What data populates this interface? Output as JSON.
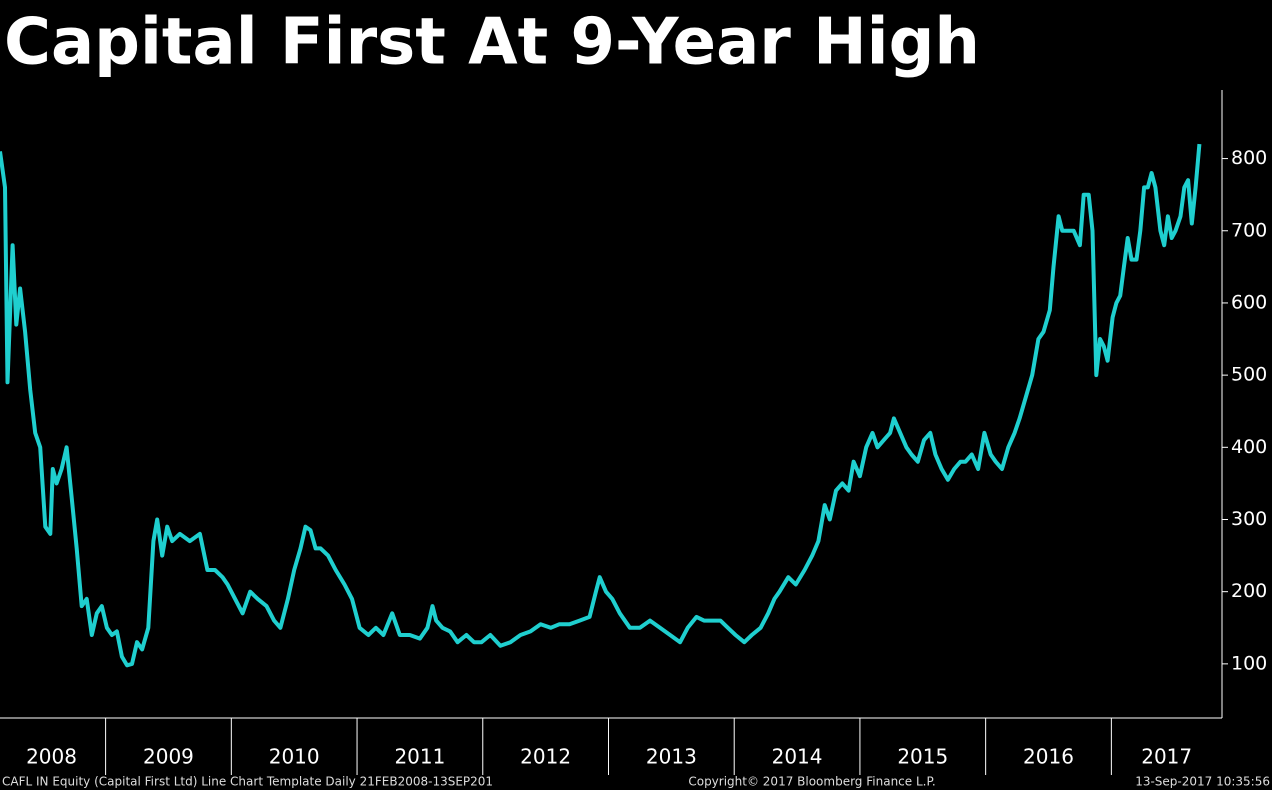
{
  "chart_data": {
    "type": "line",
    "title": "Capital First At 9-Year High",
    "footer_left": "CAFL IN Equity (Capital First Ltd) Line Chart Template  Daily 21FEB2008-13SEP201",
    "footer_center": "Copyright© 2017 Bloomberg Finance L.P.",
    "footer_right": "13-Sep-2017 10:35:56",
    "xlim": [
      2008.16,
      2017.88
    ],
    "ylim": [
      25,
      895
    ],
    "yticks": [
      100,
      200,
      300,
      400,
      500,
      600,
      700,
      800
    ],
    "xticks": [
      2009,
      2010,
      2011,
      2012,
      2013,
      2014,
      2015,
      2016,
      2017
    ],
    "x_labels": [
      {
        "value": 2008.57,
        "label": "2008"
      },
      {
        "value": 2009.5,
        "label": "2009"
      },
      {
        "value": 2010.5,
        "label": "2010"
      },
      {
        "value": 2011.5,
        "label": "2011"
      },
      {
        "value": 2012.5,
        "label": "2012"
      },
      {
        "value": 2013.5,
        "label": "2013"
      },
      {
        "value": 2014.5,
        "label": "2014"
      },
      {
        "value": 2015.5,
        "label": "2015"
      },
      {
        "value": 2016.5,
        "label": "2016"
      },
      {
        "value": 2017.44,
        "label": "2017"
      }
    ],
    "x": [
      2008.16,
      2008.2,
      2008.22,
      2008.26,
      2008.29,
      2008.32,
      2008.36,
      2008.4,
      2008.44,
      2008.48,
      2008.52,
      2008.56,
      2008.58,
      2008.61,
      2008.65,
      2008.69,
      2008.73,
      2008.77,
      2008.81,
      2008.85,
      2008.89,
      2008.93,
      2008.97,
      2009.01,
      2009.05,
      2009.09,
      2009.13,
      2009.17,
      2009.21,
      2009.25,
      2009.29,
      2009.34,
      2009.38,
      2009.41,
      2009.45,
      2009.49,
      2009.53,
      2009.59,
      2009.67,
      2009.75,
      2009.81,
      2009.87,
      2009.93,
      2009.97,
      2010.03,
      2010.09,
      2010.15,
      2010.21,
      2010.28,
      2010.34,
      2010.39,
      2010.45,
      2010.5,
      2010.55,
      2010.59,
      2010.63,
      2010.67,
      2010.71,
      2010.77,
      2010.83,
      2010.9,
      2010.96,
      2011.02,
      2011.09,
      2011.15,
      2011.21,
      2011.28,
      2011.34,
      2011.42,
      2011.5,
      2011.56,
      2011.6,
      2011.63,
      2011.68,
      2011.74,
      2011.8,
      2011.87,
      2011.93,
      2011.99,
      2012.06,
      2012.14,
      2012.22,
      2012.3,
      2012.38,
      2012.46,
      2012.54,
      2012.61,
      2012.69,
      2012.77,
      2012.85,
      2012.9,
      2012.93,
      2012.98,
      2013.03,
      2013.09,
      2013.17,
      2013.25,
      2013.33,
      2013.41,
      2013.49,
      2013.57,
      2013.63,
      2013.7,
      2013.76,
      2013.82,
      2013.89,
      2013.95,
      2014.01,
      2014.08,
      2014.14,
      2014.21,
      2014.27,
      2014.32,
      2014.36,
      2014.43,
      2014.49,
      2014.56,
      2014.62,
      2014.67,
      2014.72,
      2014.76,
      2014.81,
      2014.86,
      2014.91,
      2014.95,
      2015.0,
      2015.05,
      2015.1,
      2015.14,
      2015.19,
      2015.24,
      2015.27,
      2015.32,
      2015.37,
      2015.41,
      2015.46,
      2015.51,
      2015.56,
      2015.6,
      2015.65,
      2015.7,
      2015.75,
      2015.8,
      2015.84,
      2015.89,
      2015.94,
      2015.99,
      2016.04,
      2016.08,
      2016.13,
      2016.18,
      2016.23,
      2016.27,
      2016.32,
      2016.37,
      2016.42,
      2016.46,
      2016.51,
      2016.54,
      2016.58,
      2016.61,
      2016.66,
      2016.7,
      2016.75,
      2016.78,
      2016.82,
      2016.85,
      2016.88,
      2016.91,
      2016.94,
      2016.97,
      2017.01,
      2017.04,
      2017.07,
      2017.1,
      2017.13,
      2017.16,
      2017.2,
      2017.23,
      2017.26,
      2017.29,
      2017.32,
      2017.35,
      2017.39,
      2017.42,
      2017.45,
      2017.48,
      2017.51,
      2017.55,
      2017.58,
      2017.61,
      2017.64,
      2017.67,
      2017.7
    ],
    "series": [
      {
        "name": "CAFL IN Equity",
        "color": "#1fcfcf",
        "values": [
          810,
          760,
          490,
          680,
          570,
          620,
          560,
          480,
          420,
          400,
          290,
          280,
          370,
          350,
          370,
          400,
          330,
          260,
          180,
          190,
          140,
          170,
          180,
          150,
          140,
          145,
          110,
          98,
          100,
          130,
          120,
          150,
          270,
          300,
          250,
          290,
          270,
          280,
          270,
          280,
          230,
          230,
          220,
          210,
          190,
          170,
          200,
          190,
          180,
          160,
          150,
          190,
          230,
          260,
          290,
          285,
          260,
          260,
          250,
          230,
          210,
          190,
          150,
          140,
          150,
          140,
          170,
          140,
          140,
          135,
          150,
          180,
          160,
          150,
          145,
          130,
          140,
          130,
          130,
          140,
          125,
          130,
          140,
          145,
          155,
          150,
          155,
          155,
          160,
          165,
          200,
          220,
          200,
          190,
          170,
          150,
          150,
          160,
          150,
          140,
          130,
          150,
          165,
          160,
          160,
          160,
          150,
          140,
          130,
          140,
          150,
          170,
          190,
          200,
          220,
          210,
          230,
          250,
          270,
          320,
          300,
          340,
          350,
          340,
          380,
          360,
          400,
          420,
          400,
          410,
          420,
          440,
          420,
          400,
          390,
          380,
          410,
          420,
          390,
          370,
          355,
          370,
          380,
          380,
          390,
          370,
          420,
          390,
          380,
          370,
          400,
          420,
          440,
          470,
          500,
          550,
          560,
          590,
          650,
          720,
          700,
          700,
          700,
          680,
          750,
          750,
          700,
          500,
          550,
          540,
          520,
          580,
          600,
          610,
          650,
          690,
          660,
          660,
          700,
          760,
          760,
          780,
          760,
          700,
          680,
          720,
          690,
          700,
          720,
          760,
          770,
          710,
          760,
          820
        ]
      }
    ]
  }
}
